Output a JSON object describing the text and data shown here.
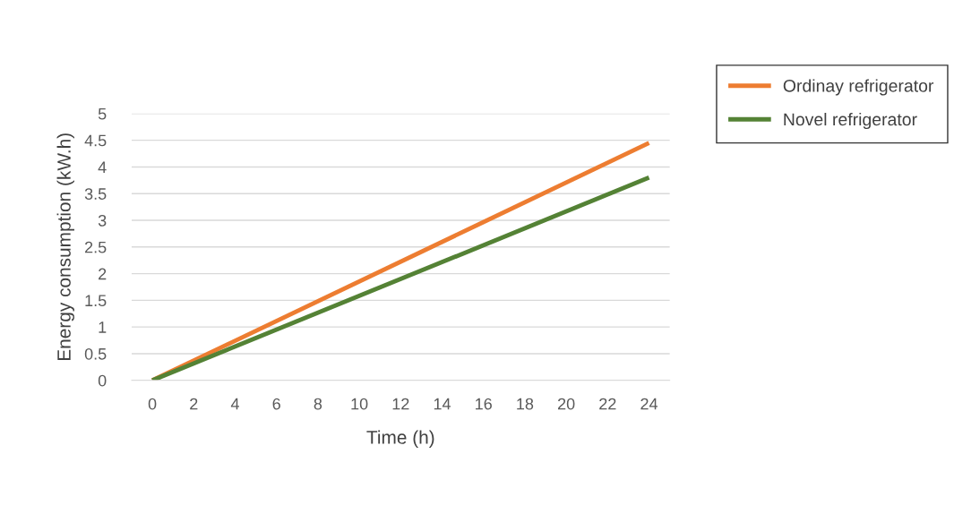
{
  "chart_data": {
    "type": "line",
    "xlabel": "Time (h)",
    "ylabel": "Energy consumption (kW.h)",
    "x": [
      0,
      24
    ],
    "series": [
      {
        "name": "Ordinay refrigerator",
        "color": "#ed7d31",
        "values": [
          0,
          4.45
        ]
      },
      {
        "name": "Novel refrigerator",
        "color": "#548235",
        "values": [
          0,
          3.8
        ]
      }
    ],
    "xlim": [
      -1,
      25
    ],
    "xticks": [
      0,
      2,
      4,
      6,
      8,
      10,
      12,
      14,
      16,
      18,
      20,
      22,
      24
    ],
    "ylim": [
      0,
      5
    ],
    "yticks": [
      0,
      0.5,
      1,
      1.5,
      2,
      2.5,
      3,
      3.5,
      4,
      4.5,
      5
    ],
    "grid": "y",
    "legend": "top right",
    "marker": "none",
    "line_style": "solid"
  }
}
